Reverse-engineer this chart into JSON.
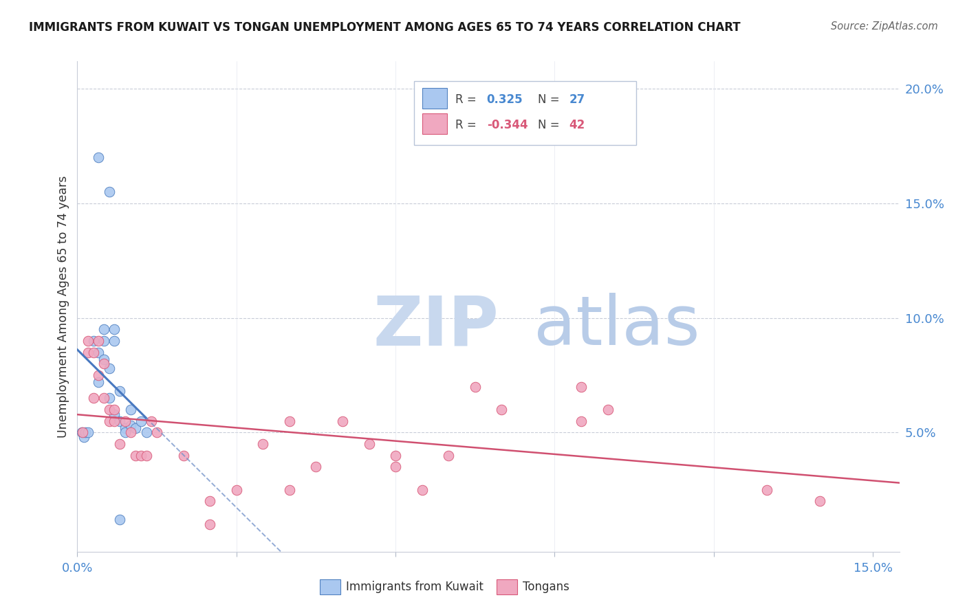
{
  "title": "IMMIGRANTS FROM KUWAIT VS TONGAN UNEMPLOYMENT AMONG AGES 65 TO 74 YEARS CORRELATION CHART",
  "source": "Source: ZipAtlas.com",
  "ylabel": "Unemployment Among Ages 65 to 74 years",
  "legend_label1": "Immigrants from Kuwait",
  "legend_label2": "Tongans",
  "r1_label": "R = ",
  "r1_val": "0.325",
  "n1_label": "N = ",
  "n1_val": "27",
  "r2_label": "R = ",
  "r2_val": "-0.344",
  "n2_label": "N = ",
  "n2_val": "42",
  "xlim": [
    0.0,
    0.155
  ],
  "ylim": [
    -0.002,
    0.212
  ],
  "color_blue_fill": "#aac8f0",
  "color_blue_edge": "#5080c0",
  "color_pink_fill": "#f0a8c0",
  "color_pink_edge": "#d85878",
  "color_trend_blue_solid": "#4878c0",
  "color_trend_blue_dash": "#7090c8",
  "color_trend_pink": "#d05070",
  "color_axis_text": "#4888d0",
  "color_grid": "#c8ccd8",
  "watermark_zip": "#c8d8ee",
  "watermark_atlas": "#b8cce8",
  "blue_x": [
    0.0008,
    0.0012,
    0.0015,
    0.002,
    0.003,
    0.004,
    0.004,
    0.005,
    0.005,
    0.006,
    0.006,
    0.007,
    0.007,
    0.008,
    0.008,
    0.009,
    0.009,
    0.01,
    0.01,
    0.011,
    0.012,
    0.013,
    0.004,
    0.006,
    0.008,
    0.005,
    0.007
  ],
  "blue_y": [
    0.05,
    0.048,
    0.05,
    0.05,
    0.09,
    0.085,
    0.072,
    0.09,
    0.082,
    0.078,
    0.065,
    0.09,
    0.058,
    0.068,
    0.055,
    0.052,
    0.05,
    0.06,
    0.053,
    0.052,
    0.055,
    0.05,
    0.17,
    0.155,
    0.012,
    0.095,
    0.095
  ],
  "pink_x": [
    0.001,
    0.002,
    0.002,
    0.003,
    0.003,
    0.004,
    0.004,
    0.005,
    0.005,
    0.006,
    0.006,
    0.007,
    0.007,
    0.008,
    0.009,
    0.01,
    0.011,
    0.012,
    0.013,
    0.014,
    0.015,
    0.02,
    0.025,
    0.03,
    0.035,
    0.04,
    0.045,
    0.05,
    0.055,
    0.06,
    0.065,
    0.07,
    0.075,
    0.08,
    0.095,
    0.1,
    0.095,
    0.04,
    0.025,
    0.06,
    0.13,
    0.14
  ],
  "pink_y": [
    0.05,
    0.09,
    0.085,
    0.085,
    0.065,
    0.09,
    0.075,
    0.08,
    0.065,
    0.06,
    0.055,
    0.06,
    0.055,
    0.045,
    0.055,
    0.05,
    0.04,
    0.04,
    0.04,
    0.055,
    0.05,
    0.04,
    0.02,
    0.025,
    0.045,
    0.055,
    0.035,
    0.055,
    0.045,
    0.035,
    0.025,
    0.04,
    0.07,
    0.06,
    0.07,
    0.06,
    0.055,
    0.025,
    0.01,
    0.04,
    0.025,
    0.02
  ]
}
